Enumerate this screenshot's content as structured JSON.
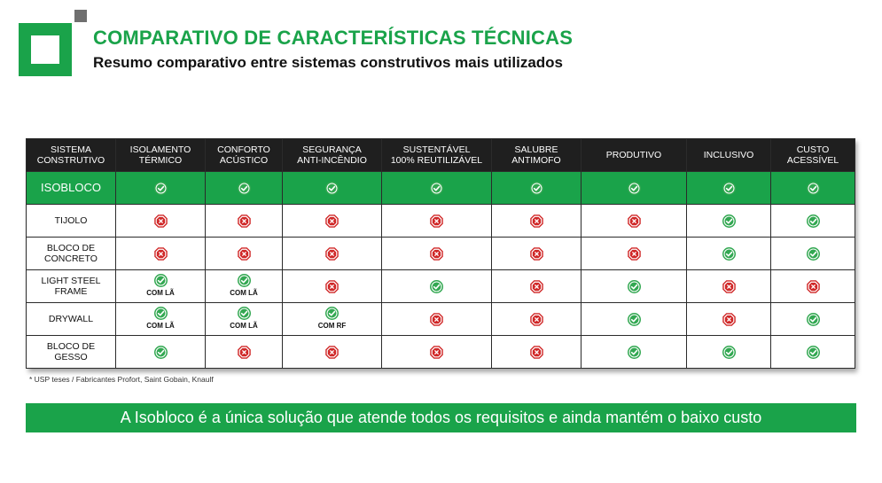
{
  "header": {
    "title": "COMPARATIVO DE CARACTERÍSTICAS TÉCNICAS",
    "subtitle": "Resumo comparativo entre sistemas construtivos mais utilizados"
  },
  "colors": {
    "brand_green": "#1aa34a",
    "header_dark": "#1f1f1f",
    "check_green": "#33a852",
    "cross_red": "#d02828"
  },
  "icons": {
    "yes": "check-icon",
    "no": "cross-icon"
  },
  "table": {
    "columns": [
      [
        "SISTEMA",
        "CONSTRUTIVO"
      ],
      [
        "ISOLAMENTO",
        "TÉRMICO"
      ],
      [
        "CONFORTO",
        "ACÚSTICO"
      ],
      [
        "SEGURANÇA",
        "ANTI-INCÊNDIO"
      ],
      [
        "SUSTENTÁVEL",
        "100% REUTILIZÁVEL"
      ],
      [
        "SALUBRE",
        "ANTIMOFO"
      ],
      [
        "PRODUTIVO"
      ],
      [
        "INCLUSIVO"
      ],
      [
        "CUSTO",
        "ACESSÍVEL"
      ]
    ],
    "rows": [
      {
        "system": [
          "ISOBLOCO"
        ],
        "highlight": true,
        "cells": [
          {
            "v": "yes"
          },
          {
            "v": "yes"
          },
          {
            "v": "yes"
          },
          {
            "v": "yes"
          },
          {
            "v": "yes"
          },
          {
            "v": "yes"
          },
          {
            "v": "yes"
          },
          {
            "v": "yes"
          }
        ]
      },
      {
        "system": [
          "TIJOLO"
        ],
        "cells": [
          {
            "v": "no"
          },
          {
            "v": "no"
          },
          {
            "v": "no"
          },
          {
            "v": "no"
          },
          {
            "v": "no"
          },
          {
            "v": "no"
          },
          {
            "v": "yes"
          },
          {
            "v": "yes"
          }
        ]
      },
      {
        "system": [
          "BLOCO DE",
          "CONCRETO"
        ],
        "cells": [
          {
            "v": "no"
          },
          {
            "v": "no"
          },
          {
            "v": "no"
          },
          {
            "v": "no"
          },
          {
            "v": "no"
          },
          {
            "v": "no"
          },
          {
            "v": "yes"
          },
          {
            "v": "yes"
          }
        ]
      },
      {
        "system": [
          "LIGHT STEEL",
          "FRAME"
        ],
        "cells": [
          {
            "v": "yes",
            "note": "COM LÃ"
          },
          {
            "v": "yes",
            "note": "COM LÃ"
          },
          {
            "v": "no"
          },
          {
            "v": "yes"
          },
          {
            "v": "no"
          },
          {
            "v": "yes"
          },
          {
            "v": "no"
          },
          {
            "v": "no"
          }
        ]
      },
      {
        "system": [
          "DRYWALL"
        ],
        "cells": [
          {
            "v": "yes",
            "note": "COM LÃ"
          },
          {
            "v": "yes",
            "note": "COM LÃ"
          },
          {
            "v": "yes",
            "note": "COM RF"
          },
          {
            "v": "no"
          },
          {
            "v": "no"
          },
          {
            "v": "yes"
          },
          {
            "v": "no"
          },
          {
            "v": "yes"
          }
        ]
      },
      {
        "system": [
          "BLOCO DE",
          "GESSO"
        ],
        "cells": [
          {
            "v": "yes"
          },
          {
            "v": "no"
          },
          {
            "v": "no"
          },
          {
            "v": "no"
          },
          {
            "v": "no"
          },
          {
            "v": "yes"
          },
          {
            "v": "yes"
          },
          {
            "v": "yes"
          }
        ]
      }
    ]
  },
  "footnote": "* USP teses / Fabricantes Profort, Saint Gobain, Knaulf",
  "banner": "A Isobloco é a única solução que atende todos os requisitos e ainda mantém o baixo custo"
}
